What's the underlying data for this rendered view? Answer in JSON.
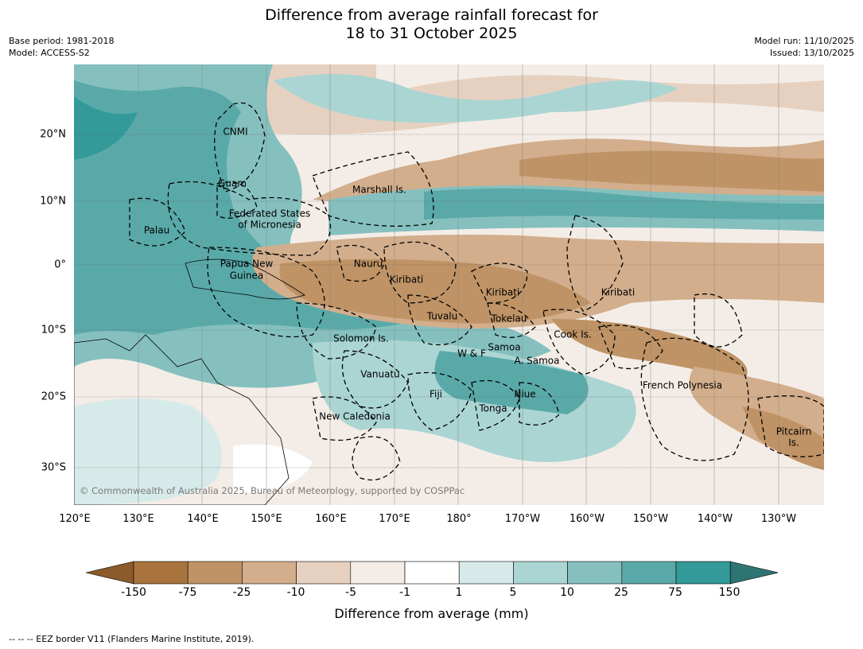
{
  "title_line1": "Difference from average rainfall forecast for",
  "title_line2": "18 to 31 October 2025",
  "base_period": "Base period: 1981-2018",
  "model": "Model: ACCESS-S2",
  "model_run": "Model run: 11/10/2025",
  "issued": "Issued: 13/10/2025",
  "lat_labels": [
    "20°N",
    "10°N",
    "0°",
    "10°S",
    "20°S",
    "30°S"
  ],
  "lon_labels": [
    "120°E",
    "130°E",
    "140°E",
    "150°E",
    "160°E",
    "170°E",
    "180°",
    "170°W",
    "160°W",
    "150°W",
    "140°W",
    "130°W"
  ],
  "places": [
    "CNMI",
    "Guam",
    "Marshall Is.",
    "Federated States",
    "of Micronesia",
    "Palau",
    "Papua New",
    "Guinea",
    "Nauru",
    "Kiribati",
    "Kiribati",
    "Kiribati",
    "Tuvalu",
    "Tokelau",
    "Solomon Is.",
    "Samoa",
    "W & F",
    "A. Samoa",
    "Cook Is.",
    "Vanuatu",
    "Fiji",
    "Niue",
    "Tonga",
    "French Polynesia",
    "New Caledonia",
    "Pitcairn",
    "Is."
  ],
  "copyright": "© Commonwealth of Australia 2025, Bureau of Meteorology, supported by COSPPac",
  "colorbar": {
    "ticks": [
      "-150",
      "-75",
      "-25",
      "-10",
      "-5",
      "-1",
      "1",
      "5",
      "10",
      "25",
      "75",
      "150"
    ],
    "colors": [
      "#8c5a2b",
      "#a8733c",
      "#bf9365",
      "#d3ae8c",
      "#e6d1c0",
      "#f4ede7",
      "#ffffff",
      "#d6ebe9",
      "#abd5d3",
      "#85c0bf",
      "#5aa9a9",
      "#339999",
      "#2e7472"
    ],
    "title": "Difference from average (mm)"
  },
  "footnote": "-- -- -- EEZ border V11 (Flanders Marine Institute, 2019)."
}
